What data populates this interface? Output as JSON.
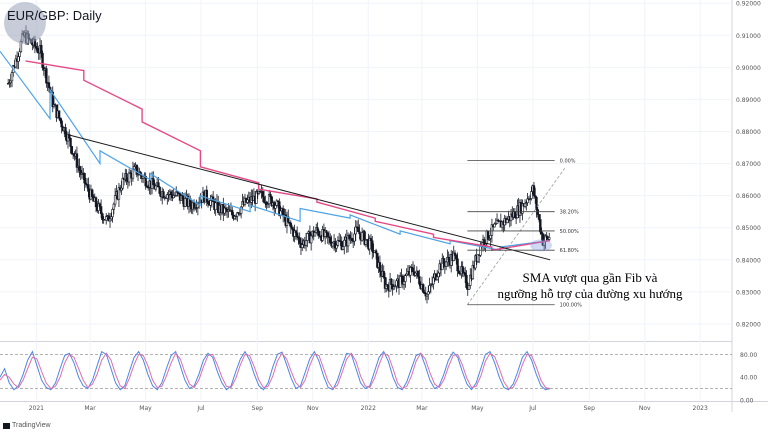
{
  "chart": {
    "symbol_title": "EUR/GBP: Daily",
    "annotation_line1": "SMA vượt qua gần Fib và",
    "annotation_line2": "ngưỡng hỗ trợ của đường xu hướng",
    "branding": "TradingView"
  },
  "colors": {
    "candle": "#131722",
    "sma_fast": "#4da3e6",
    "sma_slow": "#e64a86",
    "trendline": "#1a1a1a",
    "fib": "#444444",
    "stoch_k": "#4a86e8",
    "stoch_d": "#e06fa8",
    "grid": "#f0f3fa"
  },
  "chart_data": [
    {
      "type": "candlestick",
      "title": "EUR/GBP: Daily",
      "ylim": [
        0.815,
        0.921
      ],
      "y_ticks": [
        "0.92000",
        "0.91000",
        "0.90000",
        "0.89000",
        "0.88000",
        "0.87000",
        "0.86000",
        "0.85000",
        "0.84000",
        "0.83000",
        "0.82000"
      ],
      "x_ticks": [
        "2021",
        "Mar",
        "May",
        "Jul",
        "Sep",
        "Nov",
        "2022",
        "Mar",
        "May",
        "Jul",
        "Sep",
        "Nov",
        "2023"
      ],
      "price_path": [
        [
          "2020-12-01",
          0.895
        ],
        [
          "2020-12-18",
          0.91
        ],
        [
          "2021-01-05",
          0.905
        ],
        [
          "2021-01-20",
          0.888
        ],
        [
          "2021-02-05",
          0.878
        ],
        [
          "2021-02-20",
          0.866
        ],
        [
          "2021-03-05",
          0.858
        ],
        [
          "2021-03-20",
          0.852
        ],
        [
          "2021-04-05",
          0.864
        ],
        [
          "2021-04-20",
          0.868
        ],
        [
          "2021-05-05",
          0.864
        ],
        [
          "2021-05-20",
          0.861
        ],
        [
          "2021-06-05",
          0.86
        ],
        [
          "2021-06-20",
          0.857
        ],
        [
          "2021-07-05",
          0.86
        ],
        [
          "2021-07-20",
          0.856
        ],
        [
          "2021-08-05",
          0.854
        ],
        [
          "2021-08-20",
          0.858
        ],
        [
          "2021-09-05",
          0.86
        ],
        [
          "2021-09-20",
          0.858
        ],
        [
          "2021-10-05",
          0.851
        ],
        [
          "2021-10-20",
          0.845
        ],
        [
          "2021-11-05",
          0.849
        ],
        [
          "2021-11-20",
          0.846
        ],
        [
          "2021-12-05",
          0.845
        ],
        [
          "2021-12-20",
          0.849
        ],
        [
          "2022-01-05",
          0.844
        ],
        [
          "2022-01-20",
          0.832
        ],
        [
          "2022-02-05",
          0.833
        ],
        [
          "2022-02-20",
          0.837
        ],
        [
          "2022-03-07",
          0.829
        ],
        [
          "2022-03-20",
          0.838
        ],
        [
          "2022-04-05",
          0.841
        ],
        [
          "2022-04-20",
          0.832
        ],
        [
          "2022-05-05",
          0.845
        ],
        [
          "2022-05-20",
          0.85
        ],
        [
          "2022-06-05",
          0.853
        ],
        [
          "2022-06-20",
          0.857
        ],
        [
          "2022-07-01",
          0.862
        ],
        [
          "2022-07-12",
          0.846
        ],
        [
          "2022-07-20",
          0.847
        ]
      ],
      "series": [
        {
          "values": [
            [
              0.905,
              0.884
            ],
            [
              0.893,
              0.87
            ],
            [
              0.874,
              0.865
            ],
            [
              0.867,
              0.857
            ],
            [
              0.86,
              0.855
            ],
            [
              0.857,
              0.852
            ],
            [
              0.856,
              0.853
            ],
            [
              0.854,
              0.848
            ],
            [
              0.849,
              0.845
            ],
            [
              0.846,
              0.843
            ],
            [
              0.844,
              0.846
            ]
          ]
        },
        {
          "values": [
            [
              0.902,
              0.899
            ],
            [
              0.896,
              0.887
            ],
            [
              0.883,
              0.874
            ],
            [
              0.869,
              0.864
            ],
            [
              0.862,
              0.859
            ],
            [
              0.858,
              0.853
            ],
            [
              0.852,
              0.848
            ],
            [
              0.847,
              0.844
            ],
            [
              0.843,
              0.846
            ]
          ]
        }
      ],
      "trendline": [
        [
          "2021-02-05",
          0.879
        ],
        [
          "2022-07-20",
          0.84
        ]
      ],
      "fibonacci": {
        "levels": [
          {
            "label": "0.00%",
            "price": 0.871
          },
          {
            "label": "38.20%",
            "price": 0.855
          },
          {
            "label": "50.00%",
            "price": 0.849
          },
          {
            "label": "61.80%",
            "price": 0.843
          },
          {
            "label": "100.00%",
            "price": 0.826
          }
        ]
      }
    },
    {
      "type": "line",
      "ylim": [
        0,
        100
      ],
      "y_ticks": [
        "80.00",
        "40.00",
        "0.00"
      ],
      "levels": [
        80,
        20
      ],
      "series": [
        {
          "values": [
            40,
            55,
            30,
            18,
            25,
            45,
            70,
            85,
            60,
            35,
            22,
            18,
            30,
            55,
            78,
            82,
            65,
            40,
            25,
            20,
            35,
            60,
            85,
            80,
            55,
            30,
            18,
            25,
            50,
            75,
            85,
            70,
            45,
            25,
            18,
            30,
            55,
            78,
            85,
            60,
            35,
            20,
            25,
            45,
            70,
            82,
            75,
            50,
            30,
            18,
            25,
            50,
            72,
            85,
            70,
            45,
            25,
            18,
            30,
            58,
            80,
            84,
            62,
            38,
            20,
            25,
            48,
            72,
            85,
            68,
            42,
            22,
            18,
            35,
            60,
            82,
            80,
            55,
            30,
            20,
            25,
            50,
            75,
            85,
            68,
            40,
            22,
            18,
            32,
            55,
            78,
            82,
            60,
            35,
            20,
            25,
            45,
            70,
            84,
            75,
            50,
            28,
            18,
            30,
            55,
            80,
            85,
            65,
            40,
            22,
            18,
            28,
            50,
            75,
            85,
            70,
            45,
            25,
            18,
            20
          ]
        },
        {
          "values": [
            35,
            45,
            40,
            28,
            22,
            35,
            55,
            75,
            72,
            50,
            30,
            20,
            24,
            40,
            65,
            80,
            75,
            55,
            35,
            22,
            28,
            45,
            70,
            82,
            70,
            45,
            25,
            20,
            38,
            62,
            80,
            78,
            60,
            35,
            22,
            24,
            42,
            65,
            82,
            72,
            48,
            28,
            22,
            35,
            58,
            78,
            80,
            62,
            40,
            24,
            22,
            38,
            62,
            80,
            78,
            58,
            35,
            22,
            24,
            42,
            68,
            82,
            72,
            50,
            30,
            22,
            35,
            60,
            80,
            78,
            55,
            32,
            20,
            26,
            48,
            72,
            82,
            68,
            42,
            25,
            22,
            38,
            62,
            82,
            78,
            55,
            30,
            20,
            24,
            42,
            68,
            82,
            72,
            48,
            28,
            22,
            35,
            58,
            78,
            80,
            62,
            38,
            22,
            24,
            42,
            68,
            82,
            76,
            55,
            32,
            20,
            22,
            38,
            62,
            80,
            78,
            58,
            35,
            22,
            20
          ]
        }
      ]
    }
  ]
}
